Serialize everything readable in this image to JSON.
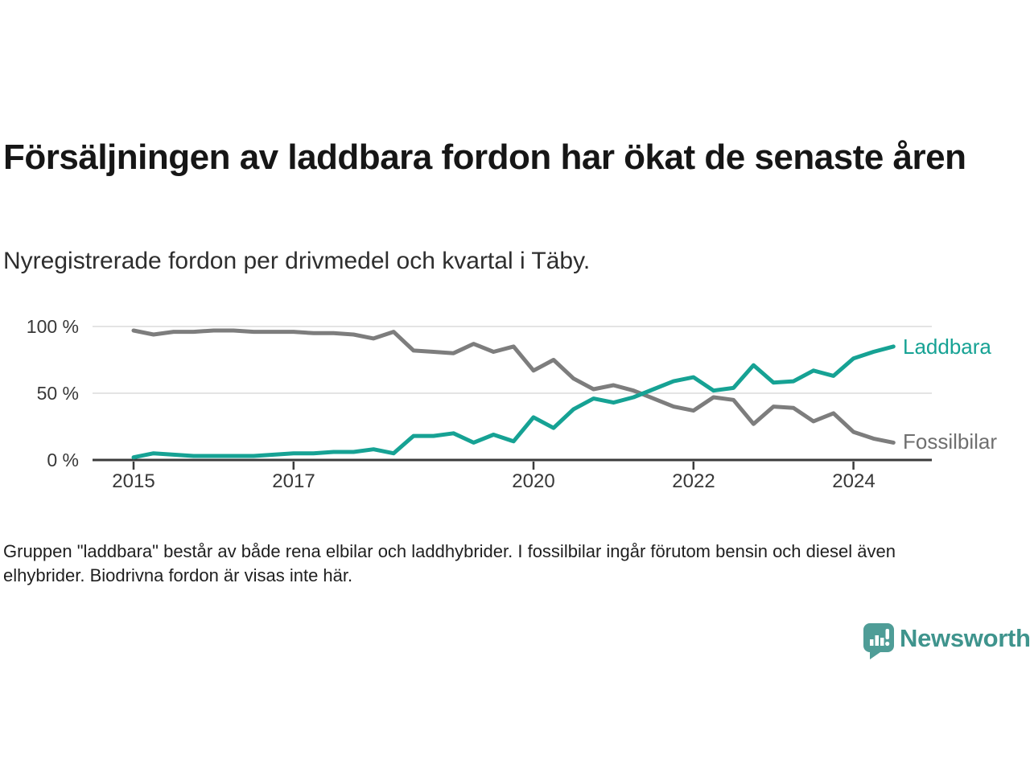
{
  "header": {
    "title": "Försäljningen av laddbara fordon har ökat de senaste åren",
    "subtitle": "Nyregistrerade fordon per drivmedel och kvartal i Täby."
  },
  "chart_data": {
    "type": "line",
    "unit": "%",
    "x_interval": "quarterly",
    "x_start": "2015 Q1",
    "x_end": "2024 Q3",
    "x_tick_years": [
      2015,
      2017,
      2020,
      2022,
      2024
    ],
    "y_ticks": [
      {
        "value": 0,
        "label": "0 %"
      },
      {
        "value": 50,
        "label": "50 %"
      },
      {
        "value": 100,
        "label": "100 %"
      }
    ],
    "ylim": [
      0,
      100
    ],
    "grid": "horizontal-only",
    "legend_position": "end-of-line-labels-right",
    "series": [
      {
        "name": "Fossilbilar",
        "color": "#7d7d7d",
        "values": [
          97,
          94,
          96,
          96,
          97,
          97,
          96,
          96,
          96,
          95,
          95,
          94,
          91,
          96,
          82,
          81,
          80,
          87,
          81,
          85,
          67,
          75,
          61,
          53,
          56,
          52,
          46,
          40,
          37,
          47,
          45,
          27,
          40,
          39,
          29,
          35,
          21,
          16,
          13
        ]
      },
      {
        "name": "Laddbara",
        "color": "#16a294",
        "values": [
          2,
          5,
          4,
          3,
          3,
          3,
          3,
          4,
          5,
          5,
          6,
          6,
          8,
          5,
          18,
          18,
          20,
          13,
          19,
          14,
          32,
          24,
          38,
          46,
          43,
          47,
          53,
          59,
          62,
          52,
          54,
          71,
          58,
          59,
          67,
          63,
          76,
          81,
          85
        ]
      }
    ]
  },
  "footer": {
    "note": "Gruppen \"laddbara\" består av både rena elbilar och laddhybrider. I fossilbilar ingår förutom bensin och diesel även elhybrider. Biodrivna fordon är visas inte här.",
    "brand": "Newsworthy"
  },
  "colors": {
    "laddbara": "#16a294",
    "fossilbilar": "#7d7d7d",
    "axis": "#3b3b3b",
    "grid": "#dcdcdc",
    "brand_teal": "#4f9d97"
  }
}
